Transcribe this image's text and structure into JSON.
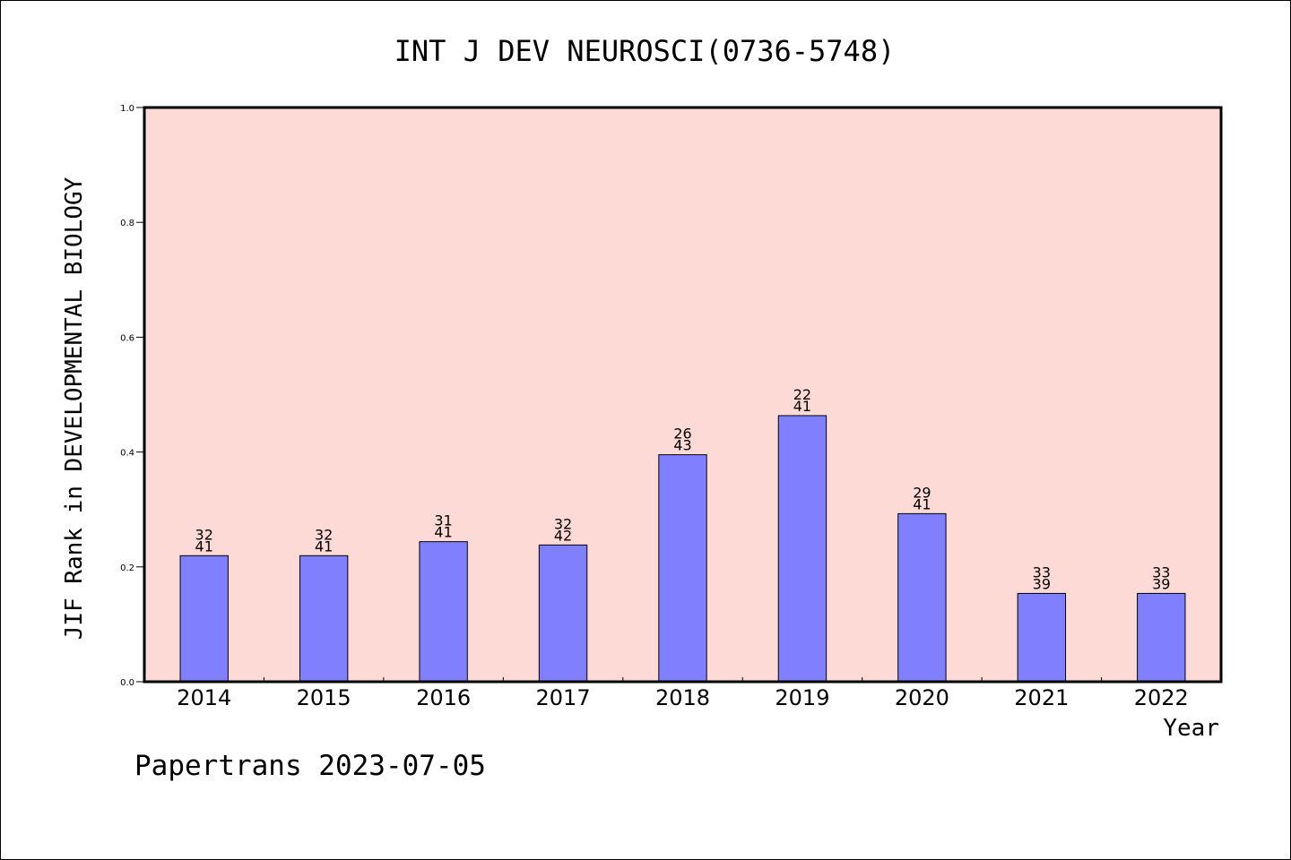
{
  "chart_data": {
    "type": "bar",
    "title": "INT J DEV NEUROSCI(0736-5748)",
    "xlabel": "Year",
    "ylabel": "JIF Rank in DEVELOPMENTAL BIOLOGY",
    "footer": "Papertrans 2023-07-05",
    "categories": [
      "2014",
      "2015",
      "2016",
      "2017",
      "2018",
      "2019",
      "2020",
      "2021",
      "2022"
    ],
    "values": [
      0.2195,
      0.2195,
      0.2439,
      0.2381,
      0.3953,
      0.4634,
      0.2927,
      0.1538,
      0.1538
    ],
    "rank": [
      "32",
      "32",
      "31",
      "32",
      "26",
      "22",
      "29",
      "33",
      "33"
    ],
    "total": [
      "41",
      "41",
      "41",
      "42",
      "43",
      "41",
      "41",
      "39",
      "39"
    ],
    "ylim": [
      0,
      1.0
    ],
    "yticks": [
      0.0,
      0.2,
      0.4,
      0.6,
      0.8,
      1.0
    ],
    "ytick_labels": [
      "0.0",
      "0.2",
      "0.4",
      "0.6",
      "0.8",
      "1.0"
    ],
    "grid": false,
    "legend": "none",
    "colors": {
      "plot_background": "#fddad6",
      "bar_fill": "#8080ff",
      "bar_stroke": "#000000",
      "axis": "#000000"
    }
  }
}
